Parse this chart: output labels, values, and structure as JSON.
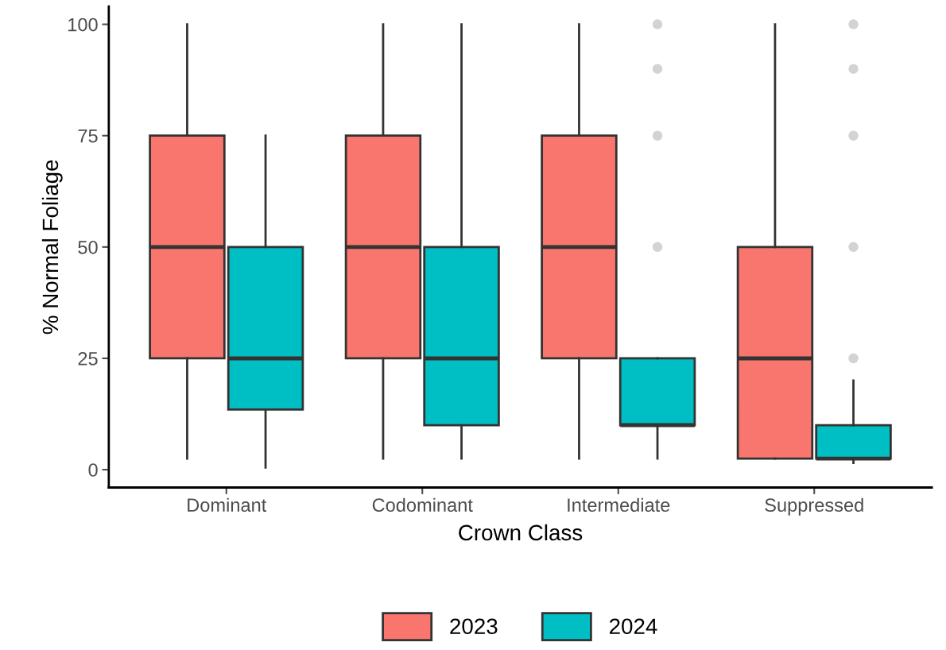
{
  "chart_data": {
    "type": "box",
    "xlabel": "Crown Class",
    "ylabel": "% Normal Foliage",
    "categories": [
      "Dominant",
      "Codominant",
      "Intermediate",
      "Suppressed"
    ],
    "ylim": [
      -4,
      104
    ],
    "yticks": [
      0,
      25,
      50,
      75,
      100
    ],
    "grid": false,
    "legend": "bottom",
    "series": [
      {
        "name": "2023",
        "color": "#f8766d",
        "boxes": [
          {
            "low": 2.5,
            "q1": 25,
            "median": 50,
            "q3": 75,
            "high": 100
          },
          {
            "low": 2.5,
            "q1": 25,
            "median": 50,
            "q3": 75,
            "high": 100
          },
          {
            "low": 2.5,
            "q1": 25,
            "median": 50,
            "q3": 75,
            "high": 100
          },
          {
            "low": 2.5,
            "q1": 2.5,
            "median": 25,
            "q3": 50,
            "high": 100
          }
        ]
      },
      {
        "name": "2024",
        "color": "#00bfc4",
        "boxes": [
          {
            "low": 0.5,
            "q1": 13.5,
            "median": 25,
            "q3": 50,
            "high": 75
          },
          {
            "low": 2.5,
            "q1": 10,
            "median": 25,
            "q3": 50,
            "high": 100
          },
          {
            "low": 2.5,
            "q1": 10,
            "median": 10,
            "q3": 25,
            "high": 25,
            "outliers": [
              50,
              75,
              90,
              100
            ]
          },
          {
            "low": 1.5,
            "q1": 2.5,
            "median": 2.5,
            "q3": 10,
            "high": 20,
            "outliers": [
              25,
              50,
              75,
              90,
              100
            ]
          }
        ]
      }
    ]
  }
}
